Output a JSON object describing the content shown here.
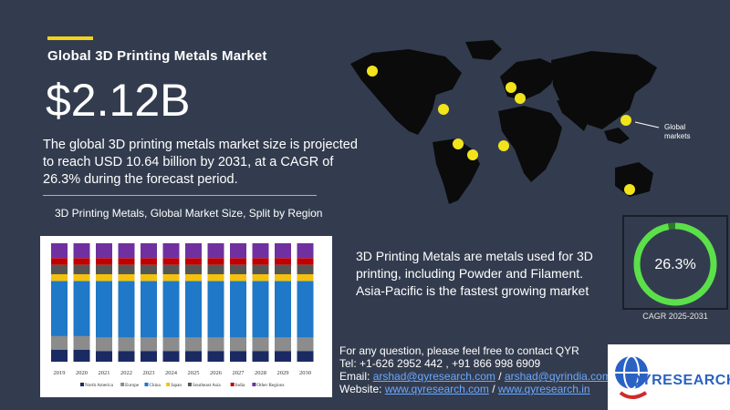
{
  "header": {
    "title": "Global 3D Printing Metals Market",
    "market_size": "$2.12B",
    "description": "The global 3D printing metals market size is projected to reach USD 10.64 billion by 2031, at a CAGR of 26.3% during the forecast period."
  },
  "chart_section": {
    "subtitle": "3D Printing Metals, Global Market Size, Split by Region"
  },
  "chart_data": {
    "type": "bar",
    "stacked": true,
    "normalized": true,
    "categories": [
      "2019",
      "2020",
      "2021",
      "2022",
      "2023",
      "2024",
      "2025",
      "2026",
      "2027",
      "2028",
      "2029",
      "2030"
    ],
    "series": [
      {
        "name": "North America",
        "color": "#1b2a63",
        "values": [
          9,
          9,
          8,
          8,
          8,
          8,
          8,
          8,
          8,
          8,
          8,
          8
        ]
      },
      {
        "name": "Europe",
        "color": "#8c8c8c",
        "values": [
          10,
          10,
          10,
          10,
          10,
          10,
          10,
          10,
          10,
          10,
          10,
          10
        ]
      },
      {
        "name": "China",
        "color": "#1f78c8",
        "values": [
          41,
          41,
          42,
          42,
          42,
          42,
          42,
          42,
          42,
          42,
          42,
          42
        ]
      },
      {
        "name": "Japan",
        "color": "#f4c20d",
        "values": [
          5,
          5,
          5,
          5,
          5,
          5,
          5,
          5,
          5,
          5,
          5,
          5
        ]
      },
      {
        "name": "Southeast Asia",
        "color": "#555555",
        "values": [
          7,
          7,
          7,
          7,
          7,
          7,
          7,
          7,
          7,
          7,
          7,
          7
        ]
      },
      {
        "name": "India",
        "color": "#c00000",
        "values": [
          5,
          5,
          5,
          5,
          5,
          5,
          5,
          5,
          5,
          5,
          5,
          5
        ]
      },
      {
        "name": "Other Regions",
        "color": "#7030a0",
        "values": [
          11,
          11,
          11,
          11,
          11,
          11,
          11,
          11,
          11,
          11,
          11,
          11
        ]
      }
    ]
  },
  "map": {
    "legend_label": "Global\nmarkets",
    "land_color": "#0b0b0b",
    "marker_color": "#f2e41b"
  },
  "definition": "3D Printing Metals are metals used for 3D printing, including Powder and Filament. Asia-Pacific is the fastest growing market",
  "cagr": {
    "value": "26.3%",
    "fraction": 0.263,
    "label": "CAGR 2025-2031",
    "color": "#5be04a"
  },
  "contact": {
    "line1": "For any question, please feel free to contact QYR",
    "tel": "Tel: +1-626 2952 442 , +91 866 998 6909",
    "email_label": "Email: ",
    "email1": "arshad@qyresearch.com",
    "email_sep": " / ",
    "email2": "arshad@qyrindia.com",
    "website_label": "Website: ",
    "web1": "www.qyresearch.com",
    "web_sep": " / ",
    "web2": "www.qyresearch.in"
  },
  "logo": {
    "text": "QYRESEARCH"
  }
}
